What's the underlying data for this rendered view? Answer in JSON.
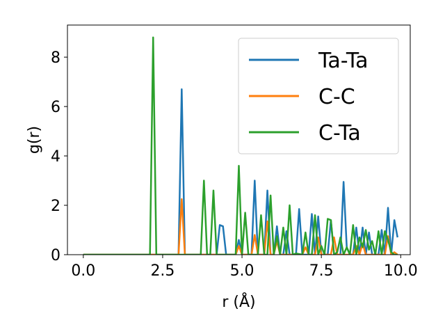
{
  "chart_data": {
    "type": "line",
    "title": "",
    "xlabel": "r (Å)",
    "ylabel": "g(r)",
    "xlim": [
      -0.5,
      10.3
    ],
    "ylim": [
      0,
      9.3
    ],
    "xticks": [
      0.0,
      2.5,
      5.0,
      7.5,
      10.0
    ],
    "xtick_labels": [
      "0.0",
      "2.5",
      "5.0",
      "7.5",
      "10.0"
    ],
    "yticks": [
      0,
      2,
      4,
      6,
      8
    ],
    "ytick_labels": [
      "0",
      "2",
      "4",
      "6",
      "8"
    ],
    "grid": false,
    "legend_position": "top-right",
    "series": [
      {
        "name": "Ta-Ta",
        "color": "#1f77b4",
        "x": [
          0,
          2.9,
          3.0,
          3.1,
          3.2,
          3.3,
          4.2,
          4.3,
          4.4,
          4.5,
          4.8,
          4.9,
          5.0,
          5.3,
          5.4,
          5.5,
          5.7,
          5.8,
          5.9,
          6.0,
          6.1,
          6.2,
          6.3,
          6.4,
          6.5,
          6.6,
          6.7,
          6.8,
          6.9,
          7.0,
          7.1,
          7.2,
          7.3,
          7.4,
          7.5,
          7.6,
          7.7,
          7.8,
          7.9,
          8.0,
          8.1,
          8.2,
          8.3,
          8.4,
          8.5,
          8.6,
          8.7,
          8.8,
          8.9,
          9.0,
          9.1,
          9.2,
          9.3,
          9.4,
          9.5,
          9.6,
          9.7,
          9.8,
          9.9
        ],
        "y": [
          0,
          0,
          0,
          6.7,
          0,
          0,
          0,
          1.2,
          1.15,
          0,
          0,
          0.6,
          0,
          0,
          3.0,
          0,
          0,
          2.6,
          0,
          0,
          1.15,
          0,
          0,
          0.95,
          0,
          0,
          0,
          1.85,
          0,
          0,
          0,
          1.65,
          0,
          1.55,
          0,
          0,
          0,
          1.4,
          0,
          0,
          0,
          2.95,
          0.3,
          0,
          0,
          1.1,
          0,
          1.1,
          0,
          0.9,
          0,
          0,
          0,
          1.0,
          0,
          1.9,
          0,
          1.4,
          0.7
        ]
      },
      {
        "name": "C-C",
        "color": "#ff7f0e",
        "x": [
          0,
          3.0,
          3.1,
          3.2,
          4.8,
          4.9,
          5.0,
          5.3,
          5.4,
          5.5,
          5.7,
          5.8,
          5.9,
          6.0,
          6.1,
          6.2,
          6.9,
          7.0,
          7.1,
          7.2,
          7.3,
          7.4,
          7.5,
          7.8,
          7.9,
          8.0,
          8.5,
          8.6,
          8.7,
          8.8,
          8.9,
          9.5,
          9.6,
          9.7,
          9.8,
          9.9
        ],
        "y": [
          0,
          0,
          2.25,
          0,
          0,
          0.35,
          0,
          0,
          0.8,
          0,
          0,
          1.35,
          0,
          0,
          0.55,
          0,
          0,
          0.3,
          0,
          0,
          0,
          0.7,
          0,
          0,
          0.7,
          0,
          0,
          0.35,
          0,
          0.45,
          0,
          0,
          0.75,
          0,
          0.1,
          0
        ]
      },
      {
        "name": "C-Ta",
        "color": "#2ca02c",
        "x": [
          0,
          2.1,
          2.2,
          2.3,
          3.7,
          3.8,
          3.9,
          4.0,
          4.1,
          4.2,
          4.8,
          4.9,
          5.0,
          5.1,
          5.2,
          5.5,
          5.6,
          5.7,
          5.8,
          5.9,
          6.0,
          6.1,
          6.2,
          6.3,
          6.4,
          6.5,
          6.6,
          6.7,
          6.9,
          7.0,
          7.1,
          7.2,
          7.3,
          7.4,
          7.5,
          7.6,
          7.7,
          7.8,
          7.9,
          8.0,
          8.1,
          8.2,
          8.3,
          8.4,
          8.5,
          8.6,
          8.7,
          8.8,
          8.9,
          9.0,
          9.1,
          9.2,
          9.3,
          9.4,
          9.5,
          9.6,
          9.7,
          9.8,
          9.9
        ],
        "y": [
          0,
          0,
          8.8,
          0,
          0,
          3.0,
          0,
          0,
          2.6,
          0,
          0,
          3.6,
          0,
          1.7,
          0,
          0,
          1.6,
          0,
          0,
          2.4,
          0,
          0.75,
          0,
          1.1,
          0,
          2.0,
          0,
          0.05,
          0,
          0.9,
          0,
          0,
          1.6,
          0,
          0.35,
          0,
          1.45,
          1.4,
          0,
          0.1,
          0.7,
          0,
          0.3,
          0,
          1.2,
          0,
          0.7,
          0.3,
          1.0,
          0.2,
          0.55,
          0,
          0.95,
          0,
          0.95,
          0.6,
          0.1,
          0,
          0
        ]
      }
    ]
  }
}
